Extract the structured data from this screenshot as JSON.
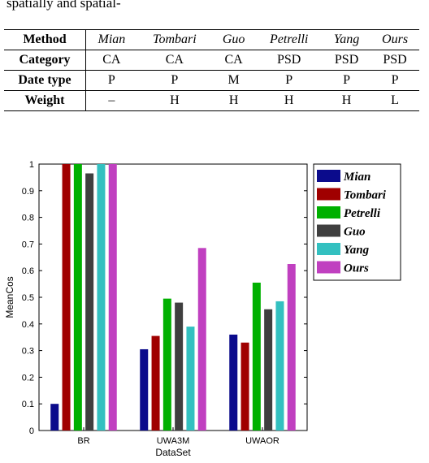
{
  "header_fragment": "spatially and spatial-",
  "table": {
    "corner": "Method",
    "methods": [
      "Mian",
      "Tombari",
      "Guo",
      "Petrelli",
      "Yang",
      "Ours"
    ],
    "rows": [
      {
        "label": "Category",
        "values": [
          "CA",
          "CA",
          "CA",
          "PSD",
          "PSD",
          "PSD"
        ]
      },
      {
        "label": "Date type",
        "values": [
          "P",
          "P",
          "M",
          "P",
          "P",
          "P"
        ]
      },
      {
        "label": "Weight",
        "values": [
          "–",
          "H",
          "H",
          "H",
          "H",
          "L"
        ]
      }
    ]
  },
  "chart_data": {
    "type": "bar",
    "xlabel": "DataSet",
    "ylabel": "MeanCos",
    "ylim": [
      0,
      1
    ],
    "yticks": [
      "0",
      "0.1",
      "0.2",
      "0.3",
      "0.4",
      "0.5",
      "0.6",
      "0.7",
      "0.8",
      "0.9",
      "1"
    ],
    "categories": [
      "BR",
      "UWA3M",
      "UWAOR"
    ],
    "legend_position": "top-right, outside plot",
    "grid": false,
    "series": [
      {
        "name": "Mian",
        "color": "#0b0b8c",
        "values": [
          0.1,
          0.305,
          0.36
        ]
      },
      {
        "name": "Tombari",
        "color": "#a00000",
        "values": [
          1.0,
          0.355,
          0.33
        ]
      },
      {
        "name": "Petrelli",
        "color": "#00b000",
        "values": [
          1.0,
          0.495,
          0.555
        ]
      },
      {
        "name": "Guo",
        "color": "#3f3f3f",
        "values": [
          0.965,
          0.48,
          0.455
        ]
      },
      {
        "name": "Yang",
        "color": "#33c0c0",
        "values": [
          1.0,
          0.39,
          0.485
        ]
      },
      {
        "name": "Ours",
        "color": "#c040c0",
        "values": [
          1.0,
          0.685,
          0.625
        ]
      }
    ]
  }
}
